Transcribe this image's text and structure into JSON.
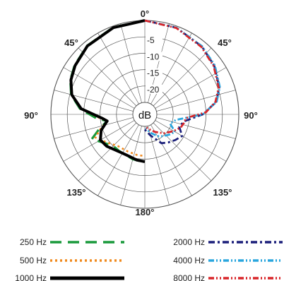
{
  "chart_data": {
    "type": "polar",
    "unit_label": "dB",
    "angle_ticks": [
      "0°",
      "45°",
      "90°",
      "135°",
      "180°",
      "135°",
      "90°",
      "45°"
    ],
    "db_ticks": [
      "-5",
      "-10",
      "-15",
      "-20"
    ],
    "r_range_db": [
      -25,
      0
    ],
    "grid": true,
    "series": [
      {
        "name": "250 Hz",
        "color": "#1a9a3c",
        "style": "long-dash",
        "side": "left",
        "points": [
          [
            0,
            0
          ],
          [
            20,
            -0.4
          ],
          [
            40,
            -1.3
          ],
          [
            55,
            -2.5
          ],
          [
            65,
            -3.6
          ],
          [
            75,
            -5.4
          ],
          [
            85,
            -8.8
          ],
          [
            95,
            -14
          ],
          [
            100,
            -17
          ],
          [
            108,
            -14
          ],
          [
            115,
            -10.8
          ],
          [
            125,
            -13.5
          ],
          [
            135,
            -15
          ],
          [
            145,
            -15
          ],
          [
            155,
            -15
          ],
          [
            165,
            -14.5
          ],
          [
            180,
            -14
          ]
        ]
      },
      {
        "name": "500 Hz",
        "color": "#f08a1e",
        "style": "dots",
        "side": "left",
        "points": [
          [
            0,
            0
          ],
          [
            20,
            -0.4
          ],
          [
            40,
            -1.3
          ],
          [
            55,
            -2.6
          ],
          [
            65,
            -3.7
          ],
          [
            75,
            -5.5
          ],
          [
            85,
            -9
          ],
          [
            95,
            -15
          ],
          [
            100,
            -17
          ],
          [
            108,
            -14.5
          ],
          [
            115,
            -12
          ],
          [
            125,
            -14
          ],
          [
            140,
            -16
          ],
          [
            155,
            -16.2
          ],
          [
            170,
            -16
          ],
          [
            180,
            -16
          ]
        ]
      },
      {
        "name": "1000 Hz",
        "color": "#000000",
        "style": "solid",
        "side": "left",
        "points": [
          [
            0,
            0
          ],
          [
            20,
            -0.5
          ],
          [
            40,
            -1.4
          ],
          [
            55,
            -2.7
          ],
          [
            65,
            -3.8
          ],
          [
            75,
            -5.6
          ],
          [
            85,
            -9.2
          ],
          [
            95,
            -15.5
          ],
          [
            100,
            -17
          ],
          [
            110,
            -14.5
          ],
          [
            120,
            -13
          ],
          [
            130,
            -13.5
          ],
          [
            140,
            -14.5
          ],
          [
            150,
            -15
          ],
          [
            160,
            -15
          ],
          [
            170,
            -14.5
          ],
          [
            180,
            -14.2
          ]
        ]
      },
      {
        "name": "2000 Hz",
        "color": "#1b1f7a",
        "style": "dash-dot",
        "side": "right",
        "points": [
          [
            0,
            0
          ],
          [
            20,
            -0.5
          ],
          [
            40,
            -1.6
          ],
          [
            55,
            -2.8
          ],
          [
            70,
            -4.5
          ],
          [
            80,
            -6.5
          ],
          [
            90,
            -11
          ],
          [
            100,
            -16.5
          ],
          [
            110,
            -17.5
          ],
          [
            120,
            -15.5
          ],
          [
            130,
            -16.5
          ],
          [
            140,
            -17.5
          ],
          [
            150,
            -18.5
          ],
          [
            165,
            -22
          ],
          [
            180,
            -24
          ]
        ]
      },
      {
        "name": "4000 Hz",
        "color": "#2aa6de",
        "style": "dash-dot-dot",
        "side": "right",
        "points": [
          [
            0,
            0
          ],
          [
            20,
            -0.5
          ],
          [
            40,
            -1.5
          ],
          [
            55,
            -2.6
          ],
          [
            70,
            -4.3
          ],
          [
            80,
            -6.4
          ],
          [
            90,
            -11
          ],
          [
            100,
            -19
          ],
          [
            110,
            -20.5
          ],
          [
            120,
            -18
          ],
          [
            130,
            -19
          ],
          [
            140,
            -20
          ],
          [
            150,
            -21
          ],
          [
            165,
            -23
          ],
          [
            180,
            -25
          ]
        ]
      },
      {
        "name": "8000 Hz",
        "color": "#d8262a",
        "style": "dash-dot-dot",
        "side": "right",
        "points": [
          [
            0,
            0
          ],
          [
            20,
            -0.6
          ],
          [
            40,
            -1.8
          ],
          [
            55,
            -3
          ],
          [
            70,
            -4.7
          ],
          [
            80,
            -6.8
          ],
          [
            88,
            -10
          ],
          [
            95,
            -16
          ],
          [
            103,
            -16.5
          ],
          [
            110,
            -17
          ],
          [
            120,
            -18.5
          ],
          [
            135,
            -20.5
          ],
          [
            150,
            -22.5
          ],
          [
            165,
            -24
          ],
          [
            180,
            -25
          ]
        ]
      }
    ]
  }
}
